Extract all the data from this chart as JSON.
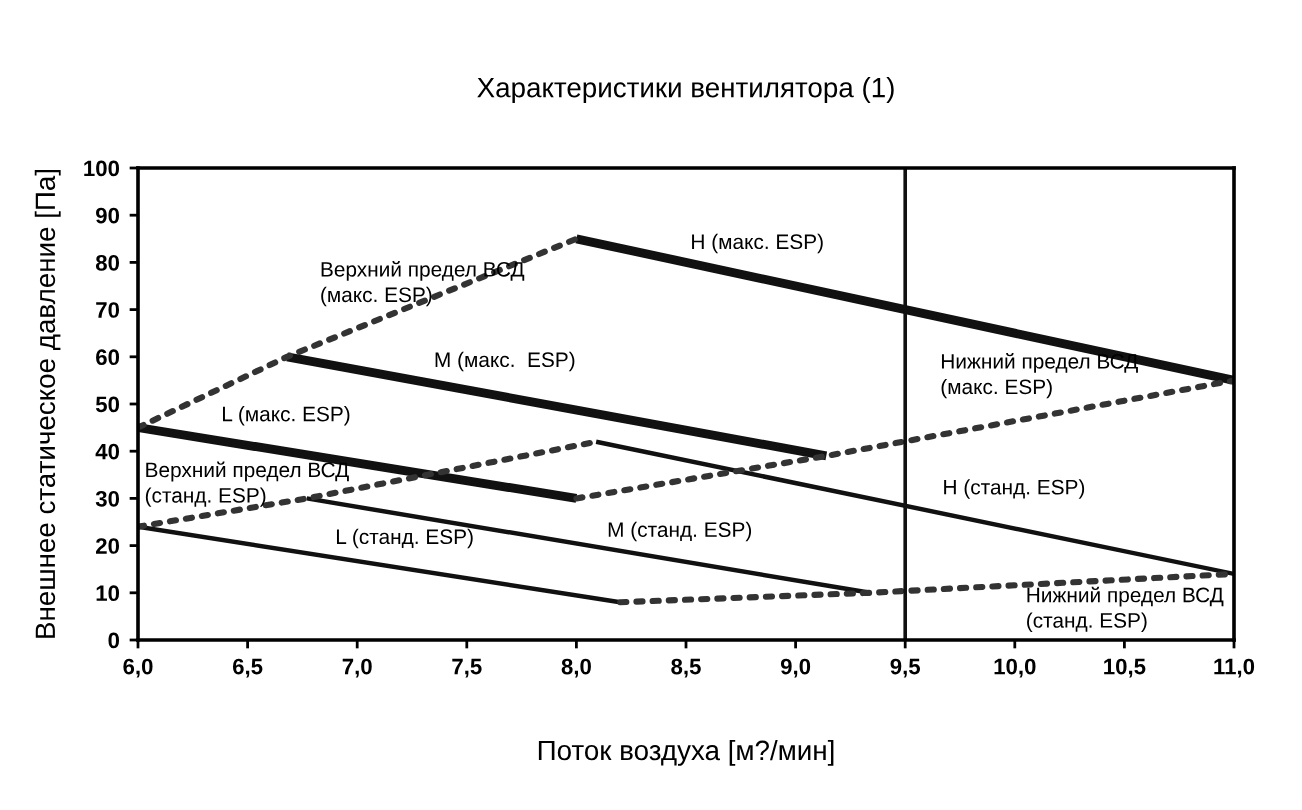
{
  "chart_data": {
    "type": "line",
    "title": "Характеристики вентилятора (1)",
    "xlabel": "Поток воздуха [м?/мин]",
    "ylabel": "Внешнее статическое давление [Па]",
    "xlim": [
      6.0,
      11.0
    ],
    "ylim": [
      0,
      100
    ],
    "xticks": [
      {
        "value": 6.0,
        "label": "6,0"
      },
      {
        "value": 6.5,
        "label": "6,5"
      },
      {
        "value": 7.0,
        "label": "7,0"
      },
      {
        "value": 7.5,
        "label": "7,5"
      },
      {
        "value": 8.0,
        "label": "8,0"
      },
      {
        "value": 8.5,
        "label": "8,5"
      },
      {
        "value": 9.0,
        "label": "9,0"
      },
      {
        "value": 9.5,
        "label": "9,5"
      },
      {
        "value": 10.0,
        "label": "10,0"
      },
      {
        "value": 10.5,
        "label": "10,5"
      },
      {
        "value": 11.0,
        "label": "11,0"
      }
    ],
    "yticks": [
      0,
      10,
      20,
      30,
      40,
      50,
      60,
      70,
      80,
      90,
      100
    ],
    "grid": false,
    "legend": false,
    "marker": "none",
    "series": [
      {
        "color": "#111111",
        "line_style": "solid",
        "x": [
          8.0,
          11.0
        ],
        "values": [
          85,
          55
        ]
      },
      {
        "color": "#111111",
        "line_style": "solid",
        "x": [
          6.68,
          9.14
        ],
        "values": [
          60,
          39
        ]
      },
      {
        "color": "#111111",
        "line_style": "solid",
        "x": [
          6.0,
          8.0
        ],
        "values": [
          45,
          30
        ]
      },
      {
        "color": "#111111",
        "line_style": "solid",
        "x": [
          8.09,
          11.0
        ],
        "values": [
          42,
          14
        ]
      },
      {
        "color": "#111111",
        "line_style": "solid",
        "x": [
          6.77,
          9.34
        ],
        "values": [
          30,
          10
        ]
      },
      {
        "color": "#111111",
        "line_style": "solid",
        "x": [
          6.0,
          8.2
        ],
        "values": [
          24,
          8
        ]
      },
      {
        "color": "#333333",
        "line_style": "dotted",
        "x": [
          6.0,
          6.68,
          8.0
        ],
        "values": [
          45,
          60,
          85
        ]
      },
      {
        "color": "#333333",
        "line_style": "dotted",
        "x": [
          6.0,
          6.77,
          8.09
        ],
        "values": [
          24,
          30,
          42
        ]
      },
      {
        "color": "#333333",
        "line_style": "dotted",
        "x": [
          8.0,
          9.14,
          11.0
        ],
        "values": [
          30,
          39,
          55
        ]
      },
      {
        "color": "#333333",
        "line_style": "dotted",
        "x": [
          8.2,
          9.34,
          11.0
        ],
        "values": [
          8,
          10,
          14
        ]
      }
    ],
    "ref_lines": [
      {
        "axis": "x",
        "value": 9.5,
        "color": "#111111",
        "line_style": "solid"
      }
    ],
    "annotations": [
      "H (макс. ESP)",
      "Верхний предел ВСД\n(макс. ESP)",
      "M (макс.  ESP)",
      "L (макс. ESP)",
      "Верхний предел ВСД\n(станд. ESP)",
      "L (станд. ESP)",
      "M (станд. ESP)",
      "Нижний предел ВСД\n(макс. ESP)",
      "H (станд. ESP)",
      "Нижний предел ВСД\n(станд. ESP)"
    ]
  }
}
